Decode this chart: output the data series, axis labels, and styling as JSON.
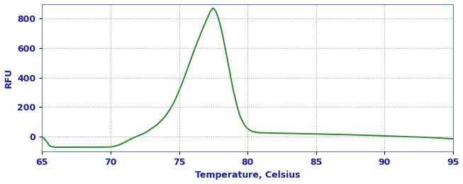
{
  "title": "",
  "xlabel": "Temperature, Celsius",
  "ylabel": "RFU",
  "xlim": [
    65,
    95
  ],
  "ylim": [
    -100,
    900
  ],
  "yticks": [
    0,
    200,
    400,
    600,
    800
  ],
  "xticks": [
    65,
    70,
    75,
    80,
    85,
    90,
    95
  ],
  "line_color": "#228B22",
  "line_width": 1.4,
  "background_color": "#ffffff",
  "grid_color": "#999999",
  "label_color": "#1a1aaa",
  "tick_color": "#1a1aaa"
}
